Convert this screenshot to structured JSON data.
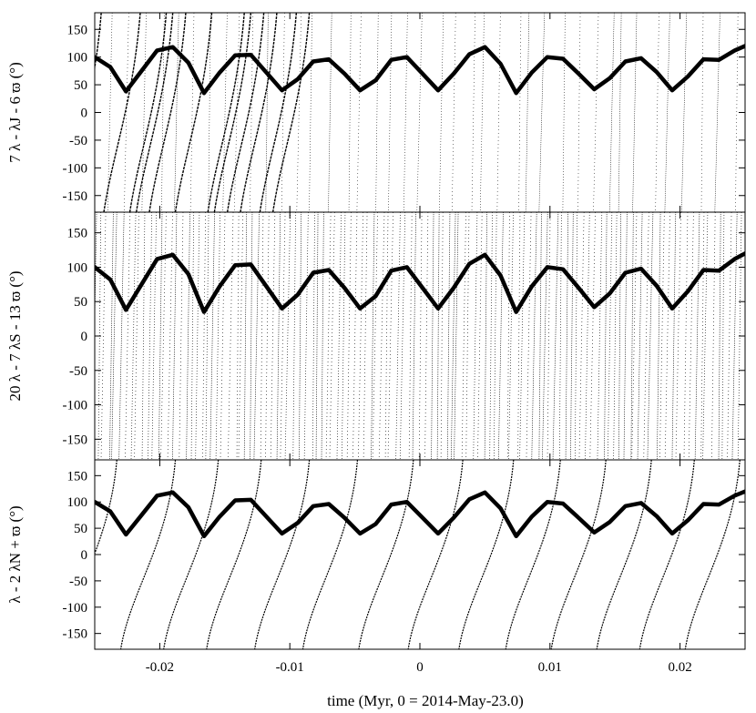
{
  "chart_data": {
    "type": "scatter",
    "xlabel": "time (Myr, 0 = 2014-May-23.0)",
    "xlim": [
      -0.025,
      0.025
    ],
    "xticks": [
      -0.02,
      -0.01,
      0,
      0.01,
      0.02
    ],
    "xtick_labels": [
      "-0.02",
      "-0.01",
      "0",
      "0.01",
      "0.02"
    ],
    "grid": false,
    "legend": "none",
    "panels": [
      {
        "ylabel": "7 λ - λJ - 6 ϖ (°)",
        "ylim": [
          -180,
          180
        ],
        "yticks": [
          150,
          100,
          50,
          0,
          -50,
          -100,
          -150
        ],
        "ytick_labels": [
          "150",
          "100",
          "50",
          "0",
          "-50",
          "-100",
          "-150"
        ],
        "description_series": "circulating resonant angle (wrapping from +180 to -180)",
        "slow_series_x": [
          -0.0245,
          -0.0215,
          -0.0195,
          -0.019,
          -0.018,
          -0.016,
          -0.0135,
          -0.013,
          -0.012,
          -0.011,
          -0.0095,
          -0.0085
        ],
        "fast_series_density": 42
      },
      {
        "ylabel": "20 λ - 7 λS - 13 ϖ (°)",
        "ylim": [
          -180,
          180
        ],
        "yticks": [
          150,
          100,
          50,
          0,
          -50,
          -100,
          -150
        ],
        "ytick_labels": [
          "150",
          "100",
          "50",
          "0",
          "-50",
          "-100",
          "-150"
        ],
        "description_series": "very fast circulating resonant angle",
        "fast_series_density": 120
      },
      {
        "ylabel": "λ - 2 λN + ϖ (°)",
        "ylim": [
          -180,
          180
        ],
        "yticks": [
          150,
          100,
          50,
          0,
          -50,
          -100,
          -150
        ],
        "ytick_labels": [
          "150",
          "100",
          "50",
          "0",
          "-50",
          "-100",
          "-150"
        ],
        "description_series": "slow circulating resonant angle",
        "slow_series_x": [
          -0.0233,
          -0.0188,
          -0.0155,
          -0.0122,
          -0.0085,
          -0.0048,
          -0.0005,
          0.0033,
          0.0072,
          0.0108,
          0.0143,
          0.0178,
          0.0211,
          0.0246
        ]
      }
    ],
    "overlay_curve": {
      "name": "",
      "x": [
        -0.025,
        -0.0238,
        -0.0226,
        -0.0214,
        -0.0202,
        -0.019,
        -0.0178,
        -0.0166,
        -0.0154,
        -0.0142,
        -0.013,
        -0.0118,
        -0.0106,
        -0.0094,
        -0.0082,
        -0.007,
        -0.0058,
        -0.0046,
        -0.0034,
        -0.0022,
        -0.001,
        0.0002,
        0.0014,
        0.0026,
        0.0038,
        0.005,
        0.0062,
        0.0074,
        0.0086,
        0.0098,
        0.011,
        0.0122,
        0.0134,
        0.0146,
        0.0158,
        0.017,
        0.0182,
        0.0194,
        0.0206,
        0.0218,
        0.023,
        0.0242,
        0.025
      ],
      "y": [
        100,
        82,
        38,
        75,
        112,
        118,
        90,
        35,
        72,
        103,
        104,
        72,
        40,
        60,
        92,
        96,
        70,
        40,
        58,
        95,
        100,
        70,
        40,
        70,
        105,
        118,
        88,
        35,
        72,
        100,
        97,
        70,
        42,
        62,
        92,
        98,
        73,
        40,
        65,
        96,
        95,
        112,
        120
      ]
    }
  }
}
